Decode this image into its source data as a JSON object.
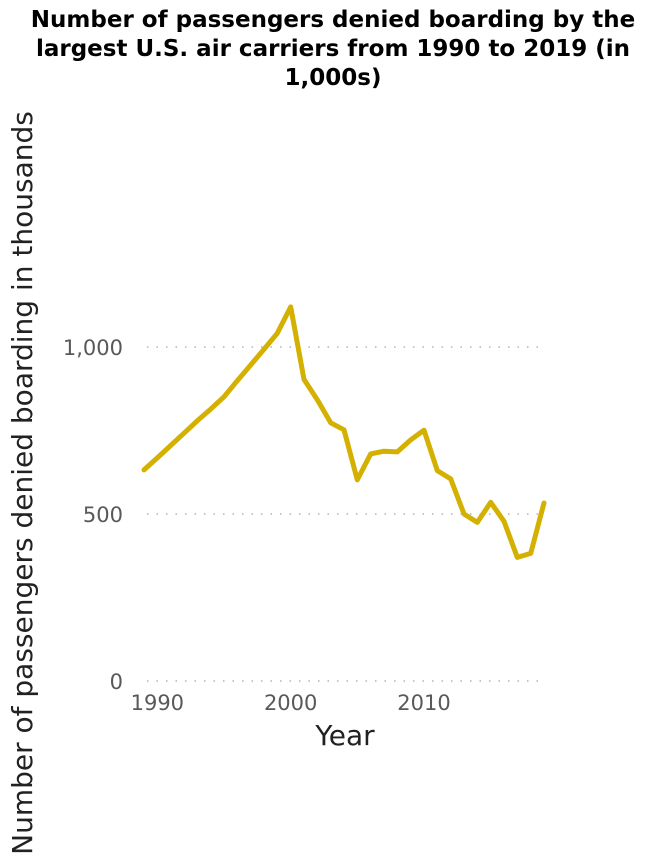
{
  "chart_data": {
    "type": "line",
    "title": "Number of passengers denied boarding by the largest U.S. air carriers from 1990 to 2019 (in 1,000s)",
    "xlabel": "Year",
    "ylabel": "Number of passengers denied boarding in thousands",
    "x_ticks": [
      1990,
      2000,
      2010
    ],
    "y_ticks": [
      0,
      500,
      1000
    ],
    "y_tick_labels": [
      "0",
      "500",
      "1,000"
    ],
    "xlim": [
      1989,
      2019
    ],
    "ylim": [
      0,
      1000
    ],
    "grid": "horizontal dotted",
    "line_color": "#d4b000",
    "series": [
      {
        "x": [
          1989,
          1990,
          1991,
          1992,
          1993,
          1994,
          1995,
          1996,
          1997,
          1998,
          1999,
          2000,
          2001,
          2002,
          2003,
          2004,
          2005,
          2006,
          2007,
          2008,
          2009,
          2010,
          2011,
          2012,
          2013,
          2014,
          2015,
          2016,
          2017,
          2018,
          2019
        ],
        "values": [
          632,
          668,
          705,
          742,
          779,
          814,
          851,
          899,
          946,
          993,
          1041,
          1120,
          903,
          842,
          773,
          752,
          602,
          680,
          688,
          686,
          722,
          751,
          630,
          605,
          500,
          475,
          535,
          478,
          370,
          382,
          533
        ]
      }
    ]
  }
}
